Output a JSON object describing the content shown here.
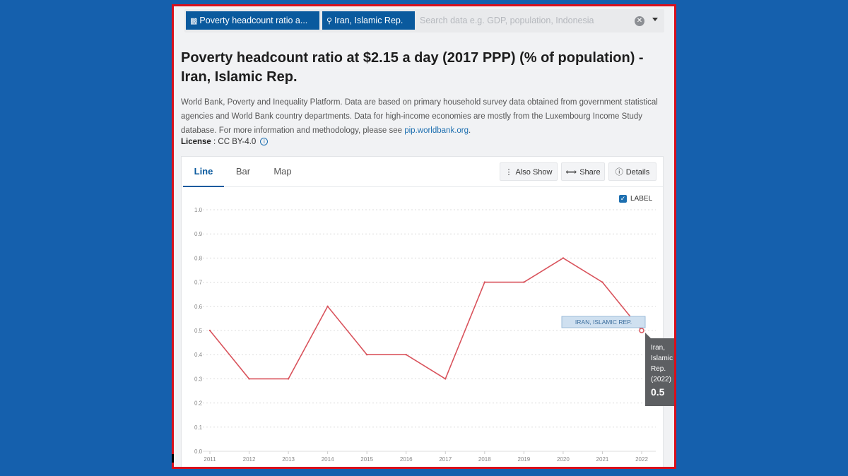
{
  "search": {
    "indicator_pill": "Poverty headcount ratio a...",
    "country_pill": "Iran, Islamic Rep.",
    "placeholder": "Search data e.g. GDP, population, Indonesia"
  },
  "page": {
    "title": "Poverty headcount ratio at $2.15 a day (2017 PPP) (% of population) - Iran, Islamic Rep.",
    "description": "World Bank, Poverty and Inequality Platform. Data are based on primary household survey data obtained from government statistical agencies and World Bank country departments. Data for high-income economies are mostly from the Luxembourg Income Study database. For more information and methodology, please see",
    "description_link": "pip.worldbank.org",
    "description_end": ".",
    "license_label": "License",
    "license_value": " : CC BY-4.0"
  },
  "tabs": [
    "Line",
    "Bar",
    "Map"
  ],
  "toolbar": {
    "also_show": "Also Show",
    "share": "Share",
    "details": "Details"
  },
  "label_toggle": "LABEL",
  "colors": {
    "line": "#d9535c",
    "brand": "#0a5a9e",
    "frame": "#d9101c",
    "background": "#1560ad"
  },
  "chart_data": {
    "type": "line",
    "x": [
      2011,
      2012,
      2013,
      2014,
      2015,
      2016,
      2017,
      2018,
      2019,
      2020,
      2021,
      2022
    ],
    "series": [
      {
        "name": "IRAN, ISLAMIC REP.",
        "values": [
          0.5,
          0.3,
          0.3,
          0.6,
          0.4,
          0.4,
          0.3,
          0.7,
          0.7,
          0.8,
          0.7,
          0.5
        ]
      }
    ],
    "yticks": [
      "0.0",
      "0.1",
      "0.2",
      "0.3",
      "0.4",
      "0.5",
      "0.6",
      "0.7",
      "0.8",
      "0.9",
      "1.0"
    ],
    "ylim": [
      0,
      1.0
    ],
    "grid": true
  },
  "tooltip": {
    "country": "Iran, Islamic Rep.",
    "year": "(2022)",
    "value": "0.5"
  }
}
